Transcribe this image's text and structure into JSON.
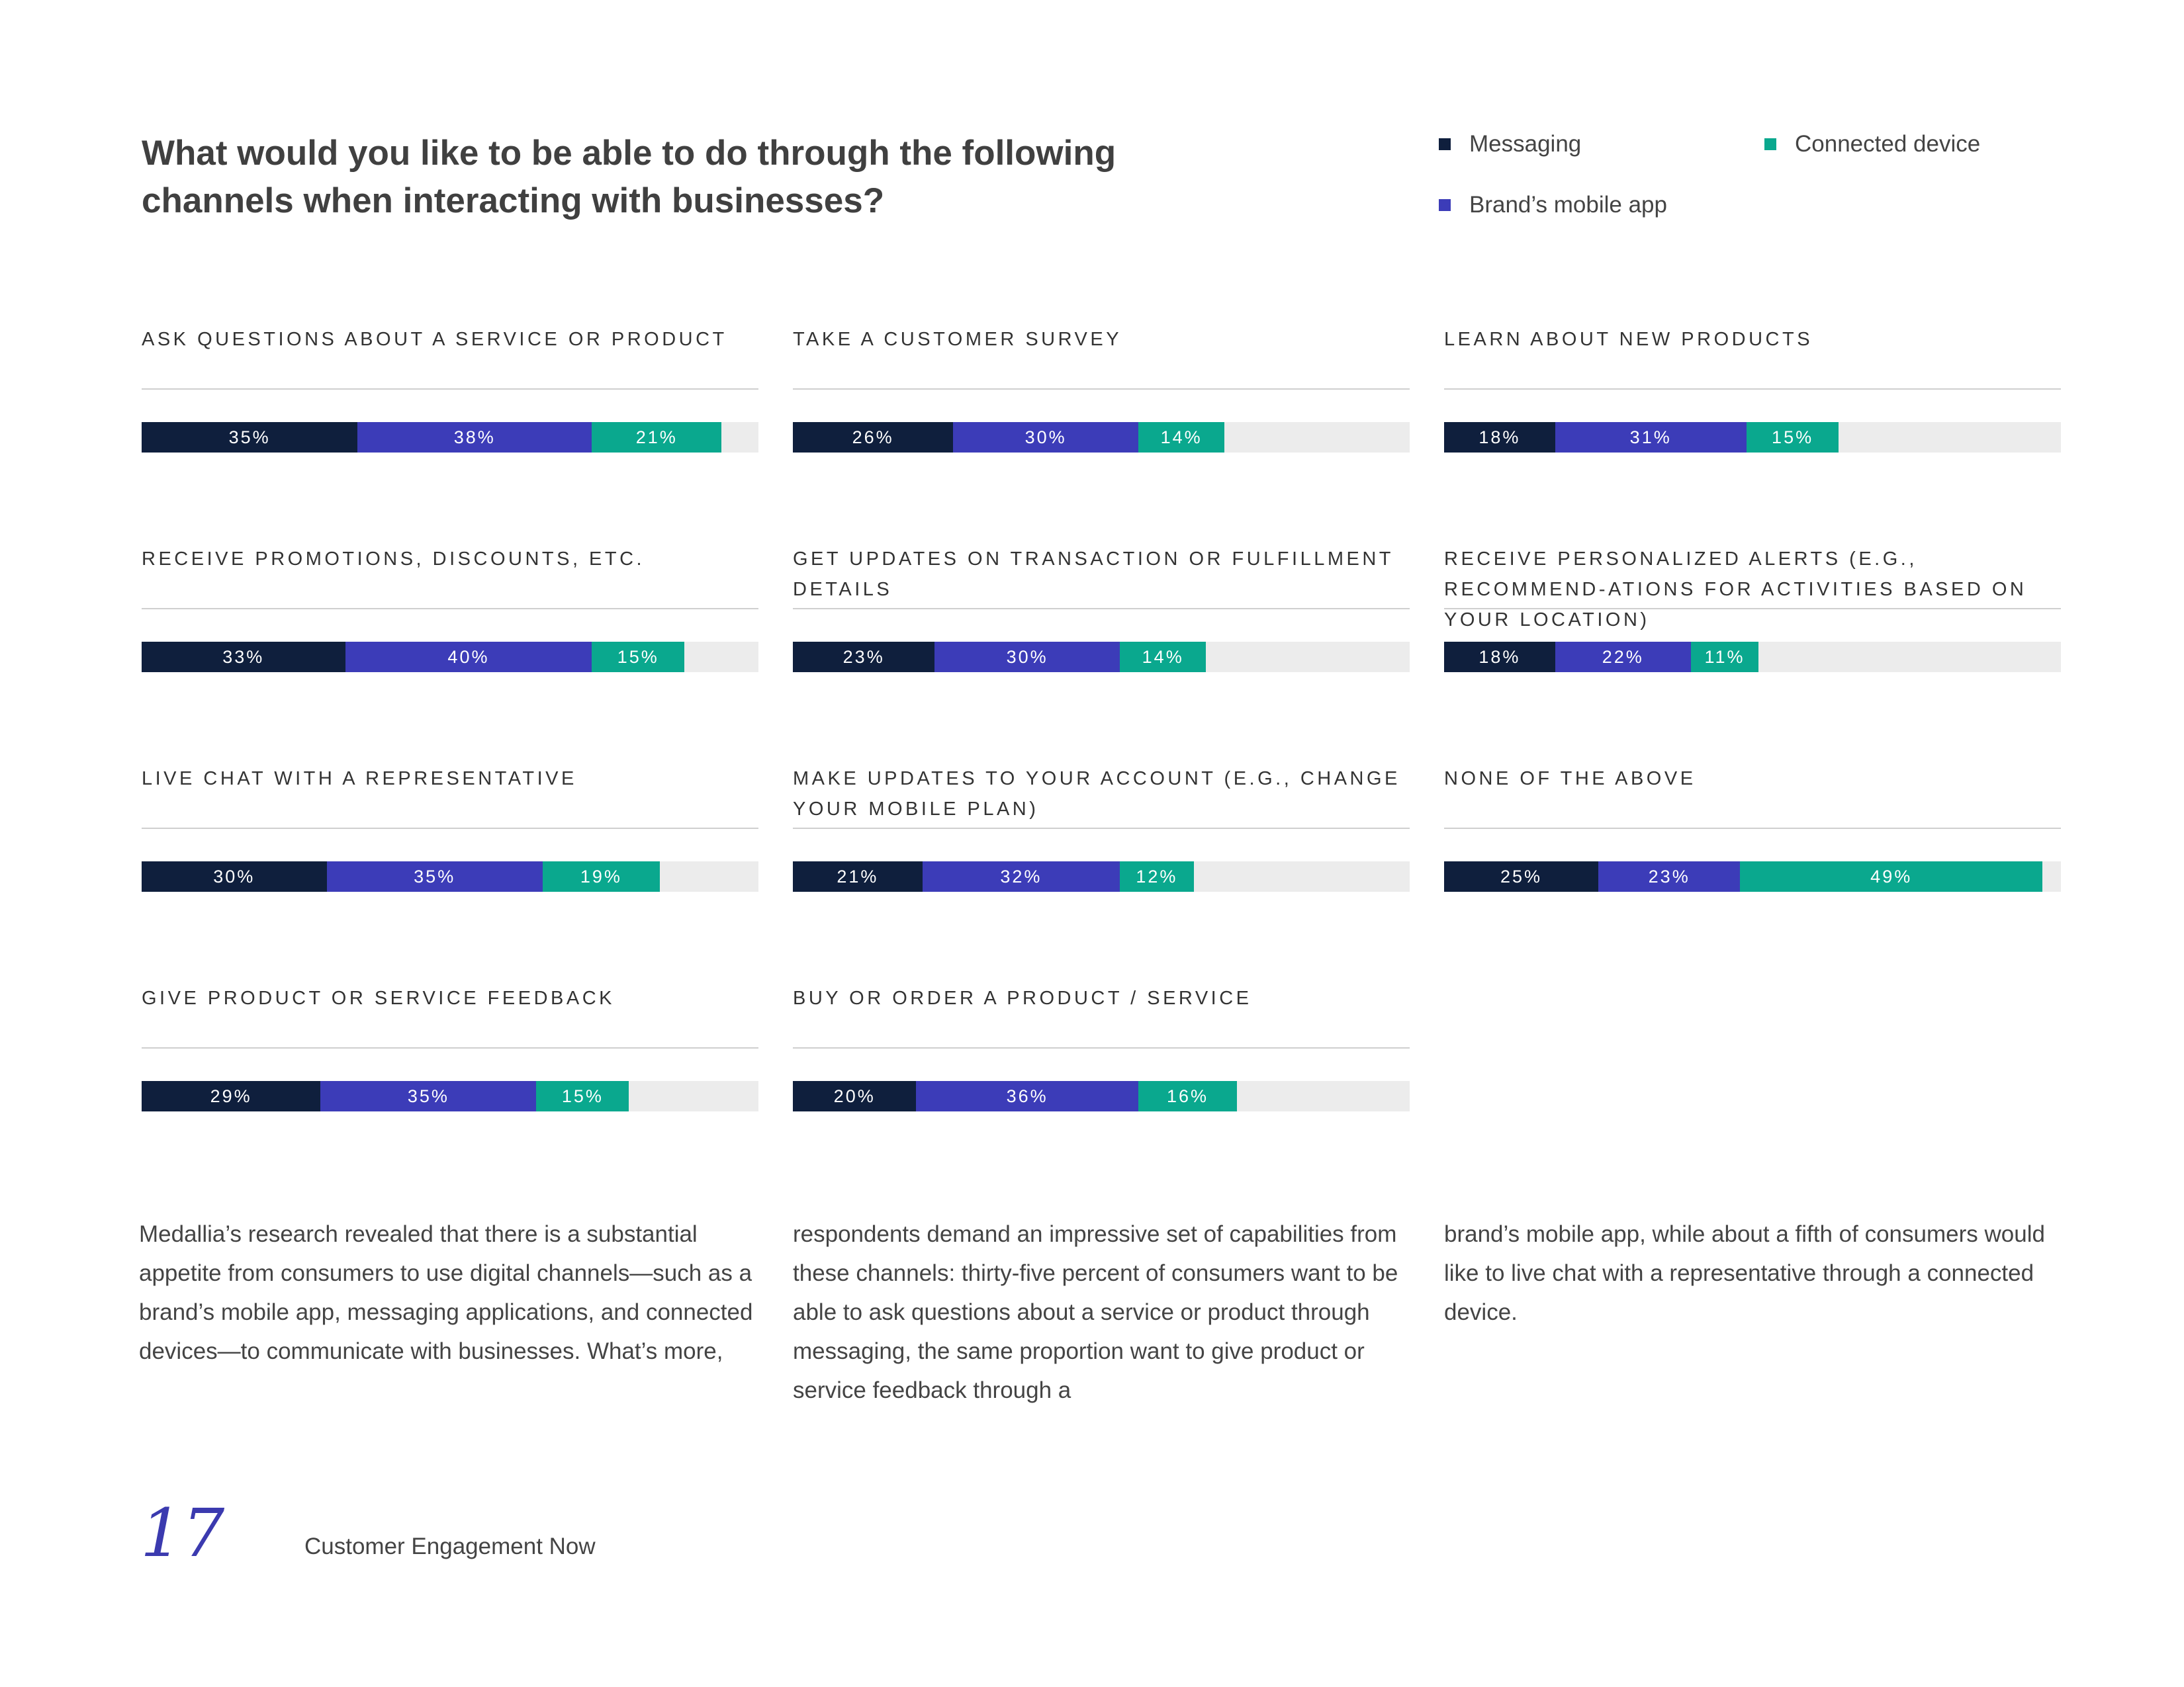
{
  "title_line1": "What would you like to be able to do through the following",
  "title_line2": "channels when interacting with businesses?",
  "legend": [
    {
      "name": "Messaging",
      "color": "#0f1f3d"
    },
    {
      "name": "Connected device",
      "color": "#0aa88e"
    },
    {
      "name": "Brand’s mobile app",
      "color": "#3c3cb8"
    }
  ],
  "colors": {
    "messaging": "#0f1f3d",
    "mobile_app": "#3c3cb8",
    "connected_device": "#0aa88e",
    "track": "#ececec"
  },
  "chart_data": {
    "type": "bar",
    "orientation": "horizontal-stacked",
    "series_names": [
      "Messaging",
      "Brand’s mobile app",
      "Connected device"
    ],
    "panels": [
      {
        "title": "ASK QUESTIONS ABOUT A SERVICE OR PRODUCT",
        "values": [
          35,
          38,
          21
        ]
      },
      {
        "title": "TAKE A CUSTOMER SURVEY",
        "values": [
          26,
          30,
          14
        ]
      },
      {
        "title": "LEARN ABOUT NEW PRODUCTS",
        "values": [
          18,
          31,
          15
        ]
      },
      {
        "title": "RECEIVE PROMOTIONS, DISCOUNTS, ETC.",
        "values": [
          33,
          40,
          15
        ]
      },
      {
        "title": "GET UPDATES ON TRANSACTION OR FULFILLMENT DETAILS",
        "values": [
          23,
          30,
          14
        ]
      },
      {
        "title": "RECEIVE PERSONALIZED ALERTS (E.G., RECOMMEND-ATIONS FOR ACTIVITIES BASED ON YOUR LOCATION)",
        "values": [
          18,
          22,
          11
        ]
      },
      {
        "title": "LIVE CHAT WITH A REPRESENTATIVE",
        "values": [
          30,
          35,
          19
        ]
      },
      {
        "title": "MAKE UPDATES TO YOUR ACCOUNT (E.G., CHANGE YOUR MOBILE PLAN)",
        "values": [
          21,
          32,
          12
        ]
      },
      {
        "title": "NONE OF THE ABOVE",
        "values": [
          25,
          23,
          49
        ]
      },
      {
        "title": "GIVE PRODUCT OR SERVICE FEEDBACK",
        "values": [
          29,
          35,
          15
        ]
      },
      {
        "title": "BUY OR ORDER A PRODUCT / SERVICE",
        "values": [
          20,
          36,
          16
        ]
      }
    ]
  },
  "body": {
    "col1": "Medallia’s research revealed that there is a substantial appetite from consumers to use digital channels—such as a brand’s mobile app, messaging applications, and connected devices—to communicate with businesses. What’s more,",
    "col2": "respondents demand an impressive set of capabilities from these channels: thirty-five percent of consumers want to be able to ask questions about a service or product through messaging, the same proportion want to give product or service feedback through a",
    "col3": "brand’s mobile app, while about a fifth of consumers would like to live chat with a representative through a connected device."
  },
  "footer": {
    "page_number": "17",
    "document_title": "Customer Engagement Now"
  }
}
